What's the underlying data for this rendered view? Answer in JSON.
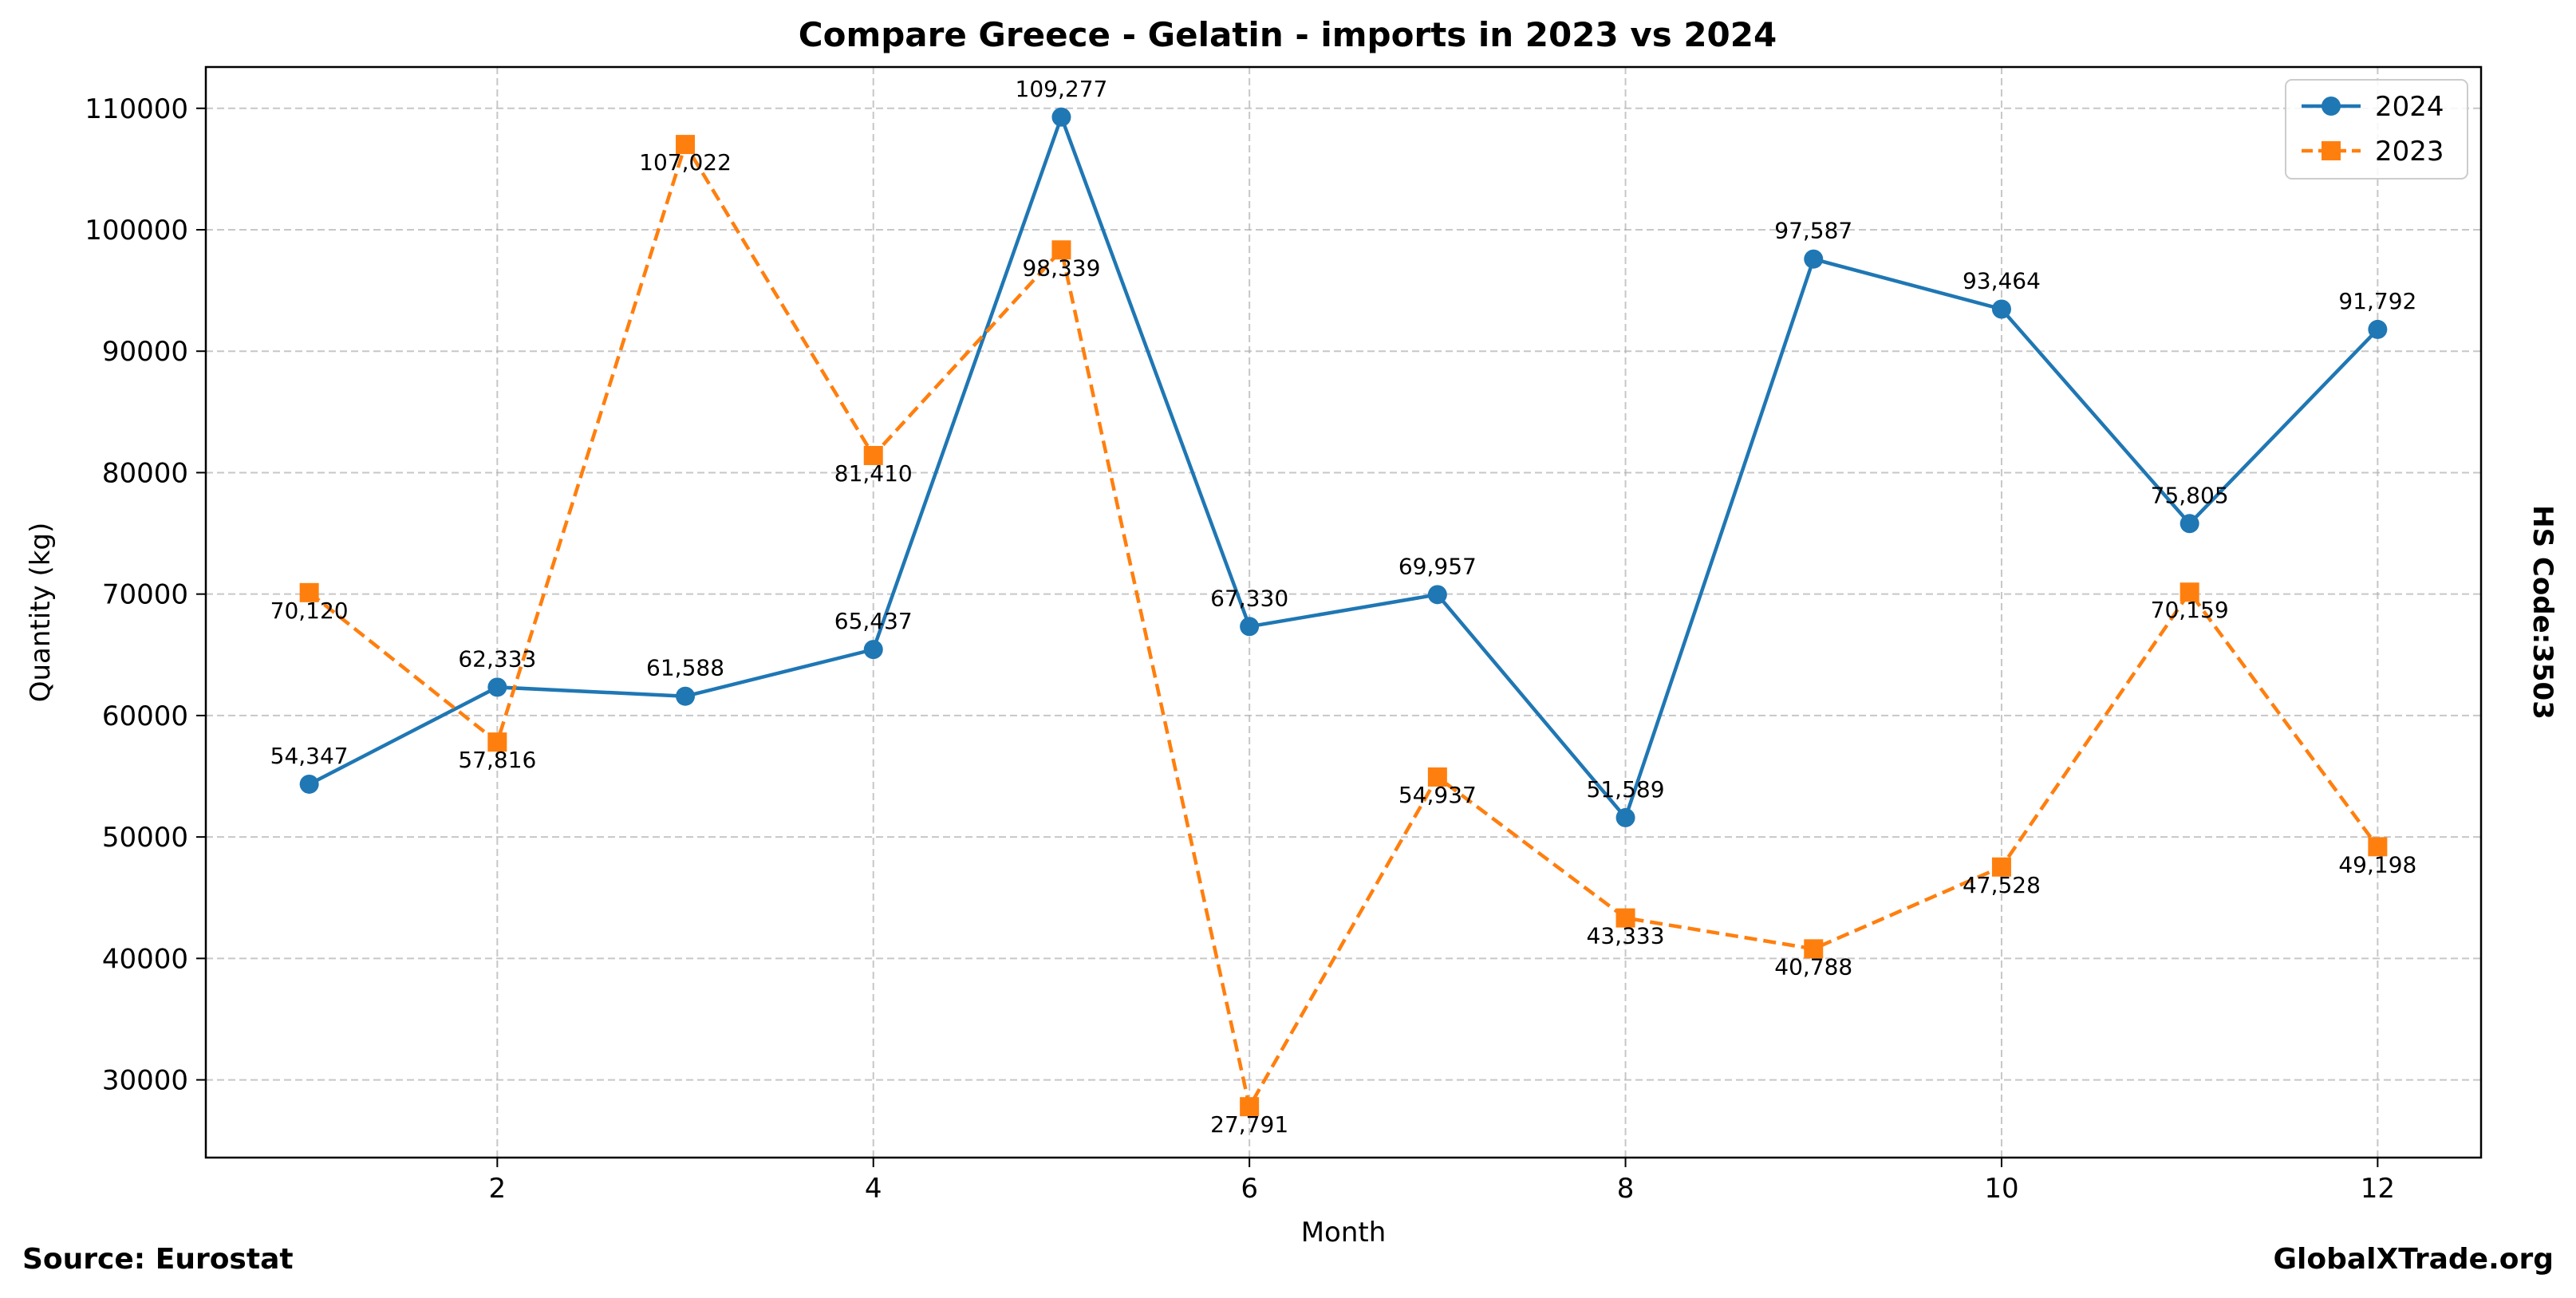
{
  "chart_data": {
    "type": "line",
    "title": "Compare Greece - Gelatin - imports in 2023 vs 2024",
    "xlabel": "Month",
    "ylabel": "Quantity (kg)",
    "x": [
      1,
      2,
      3,
      4,
      5,
      6,
      7,
      8,
      9,
      10,
      11,
      12
    ],
    "xlim": [
      0.45,
      12.55
    ],
    "ylim": [
      23600,
      113400
    ],
    "xticks": [
      2,
      4,
      6,
      8,
      10,
      12
    ],
    "yticks": [
      30000,
      40000,
      50000,
      60000,
      70000,
      80000,
      90000,
      100000,
      110000
    ],
    "grid": true,
    "legend_position": "top-right",
    "series": [
      {
        "name": "2024",
        "color": "#1f77b4",
        "line_style": "solid",
        "marker": "circle",
        "label_position": "above",
        "values": [
          54347,
          62333,
          61588,
          65437,
          109277,
          67330,
          69957,
          51589,
          97587,
          93464,
          75805,
          91792
        ],
        "labels": [
          "54,347",
          "62,333",
          "61,588",
          "65,437",
          "109,277",
          "67,330",
          "69,957",
          "51,589",
          "97,587",
          "93,464",
          "75,805",
          "91,792"
        ]
      },
      {
        "name": "2023",
        "color": "#ff7f0e",
        "line_style": "dashed",
        "marker": "square",
        "label_position": "below",
        "values": [
          70120,
          57816,
          107022,
          81410,
          98339,
          27791,
          54937,
          43333,
          40788,
          47528,
          70159,
          49198
        ],
        "labels": [
          "70,120",
          "57,816",
          "107,022",
          "81,410",
          "98,339",
          "27,791",
          "54,937",
          "43,333",
          "40,788",
          "47,528",
          "70,159",
          "49,198"
        ]
      }
    ]
  },
  "side_note": "HS Code:3503",
  "footer": {
    "source": "Source: Eurostat",
    "site": "GlobalXTrade.org"
  }
}
